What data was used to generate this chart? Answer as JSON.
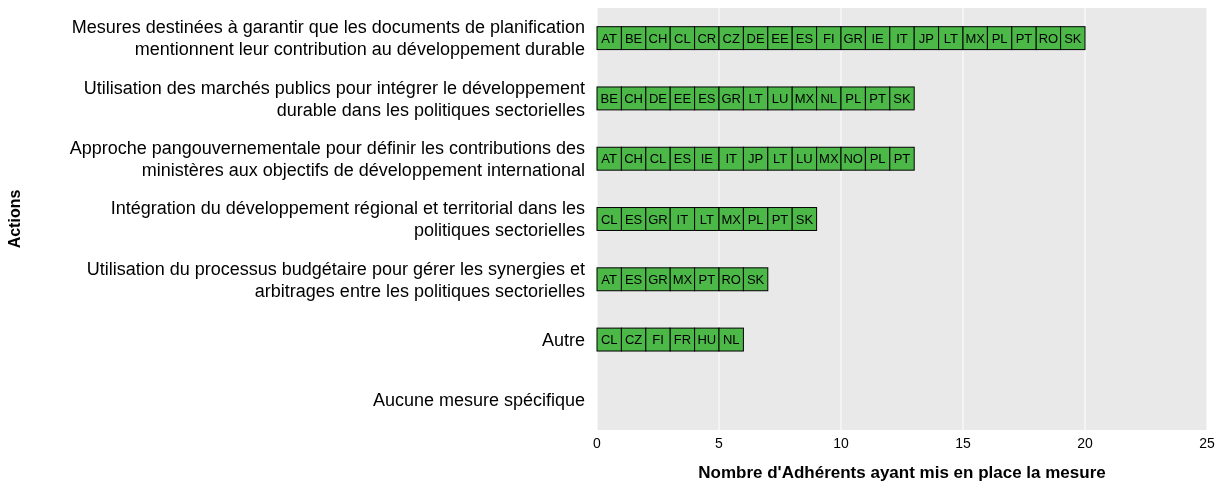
{
  "chart_data": {
    "type": "bar",
    "orientation": "horizontal",
    "stacked": true,
    "xlabel": "Nombre d'Adhérents ayant mis en place la mesure",
    "ylabel": "Actions",
    "categories": [
      "Mesures destinées à garantir que les documents de planification mentionnent leur contribution au développement durable",
      "Utilisation des marchés publics pour intégrer le développement durable dans les politiques sectorielles",
      "Approche pangouvernementale pour définir les contributions des ministères aux objectifs de développement international",
      "Intégration du développement régional et territorial dans les politiques sectorielles",
      "Utilisation du processus budgétaire pour gérer les synergies et arbitrages entre les politiques sectorielles",
      "Autre",
      "Aucune mesure spécifique"
    ],
    "series": [
      {
        "color": "#4cb848",
        "values": [
          1,
          1,
          1,
          1,
          1,
          1,
          null
        ],
        "value_labels": [
          "AT",
          "BE",
          "AT",
          "CL",
          "AT",
          "CL",
          null
        ]
      },
      {
        "color": "#4cb848",
        "values": [
          1,
          1,
          1,
          1,
          1,
          1,
          null
        ],
        "value_labels": [
          "BE",
          "CH",
          "CH",
          "ES",
          "ES",
          "CZ",
          null
        ]
      },
      {
        "color": "#4cb848",
        "values": [
          1,
          1,
          1,
          1,
          1,
          1,
          null
        ],
        "value_labels": [
          "CH",
          "DE",
          "CL",
          "GR",
          "GR",
          "FI",
          null
        ]
      },
      {
        "color": "#4cb848",
        "values": [
          1,
          1,
          1,
          1,
          1,
          1,
          null
        ],
        "value_labels": [
          "CL",
          "EE",
          "ES",
          "IT",
          "MX",
          "FR",
          null
        ]
      },
      {
        "color": "#4cb848",
        "values": [
          1,
          1,
          1,
          1,
          1,
          1,
          null
        ],
        "value_labels": [
          "CR",
          "ES",
          "IE",
          "LT",
          "PT",
          "HU",
          null
        ]
      },
      {
        "color": "#4cb848",
        "values": [
          1,
          1,
          1,
          1,
          1,
          1,
          null
        ],
        "value_labels": [
          "CZ",
          "GR",
          "IT",
          "MX",
          "RO",
          "NL",
          null
        ]
      },
      {
        "color": "#4cb848",
        "values": [
          1,
          1,
          1,
          1,
          1,
          null,
          null
        ],
        "value_labels": [
          "DE",
          "LT",
          "JP",
          "PL",
          "SK",
          null,
          null
        ]
      },
      {
        "color": "#4cb848",
        "values": [
          1,
          1,
          1,
          1,
          null,
          null,
          null
        ],
        "value_labels": [
          "EE",
          "LU",
          "LT",
          "PT",
          null,
          null,
          null
        ]
      },
      {
        "color": "#4cb848",
        "values": [
          1,
          1,
          1,
          1,
          null,
          null,
          null
        ],
        "value_labels": [
          "ES",
          "MX",
          "LU",
          "SK",
          null,
          null,
          null
        ]
      },
      {
        "color": "#4cb848",
        "values": [
          1,
          1,
          1,
          null,
          null,
          null,
          null
        ],
        "value_labels": [
          "FI",
          "NL",
          "MX",
          null,
          null,
          null,
          null
        ]
      },
      {
        "color": "#4cb848",
        "values": [
          1,
          1,
          1,
          null,
          null,
          null,
          null
        ],
        "value_labels": [
          "GR",
          "PL",
          "NO",
          null,
          null,
          null,
          null
        ]
      },
      {
        "color": "#4cb848",
        "values": [
          1,
          1,
          1,
          null,
          null,
          null,
          null
        ],
        "value_labels": [
          "IE",
          "PT",
          "PL",
          null,
          null,
          null,
          null
        ]
      },
      {
        "color": "#4cb848",
        "values": [
          1,
          1,
          1,
          null,
          null,
          null,
          null
        ],
        "value_labels": [
          "IT",
          "SK",
          "PT",
          null,
          null,
          null,
          null
        ]
      },
      {
        "color": "#4cb848",
        "values": [
          1,
          null,
          null,
          null,
          null,
          null,
          null
        ],
        "value_labels": [
          "JP",
          null,
          null,
          null,
          null,
          null,
          null
        ]
      },
      {
        "color": "#4cb848",
        "values": [
          1,
          null,
          null,
          null,
          null,
          null,
          null
        ],
        "value_labels": [
          "LT",
          null,
          null,
          null,
          null,
          null,
          null
        ]
      },
      {
        "color": "#4cb848",
        "values": [
          1,
          null,
          null,
          null,
          null,
          null,
          null
        ],
        "value_labels": [
          "MX",
          null,
          null,
          null,
          null,
          null,
          null
        ]
      },
      {
        "color": "#4cb848",
        "values": [
          1,
          null,
          null,
          null,
          null,
          null,
          null
        ],
        "value_labels": [
          "PL",
          null,
          null,
          null,
          null,
          null,
          null
        ]
      },
      {
        "color": "#4cb848",
        "values": [
          1,
          null,
          null,
          null,
          null,
          null,
          null
        ],
        "value_labels": [
          "PT",
          null,
          null,
          null,
          null,
          null,
          null
        ]
      },
      {
        "color": "#4cb848",
        "values": [
          1,
          null,
          null,
          null,
          null,
          null,
          null
        ],
        "value_labels": [
          "RO",
          null,
          null,
          null,
          null,
          null,
          null
        ]
      },
      {
        "color": "#4cb848",
        "values": [
          1,
          null,
          null,
          null,
          null,
          null,
          null
        ],
        "value_labels": [
          "SK",
          null,
          null,
          null,
          null,
          null,
          null
        ]
      }
    ],
    "xlim": [
      0,
      25
    ],
    "xticks": [
      0,
      5,
      10,
      15,
      20,
      25
    ],
    "grid": "x"
  }
}
